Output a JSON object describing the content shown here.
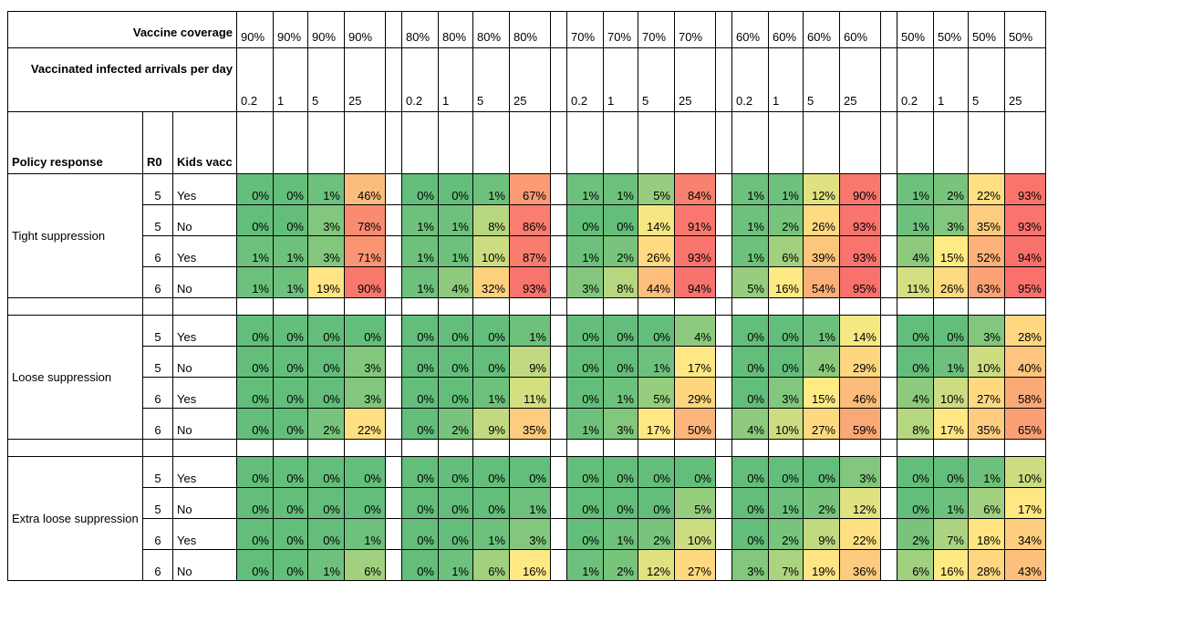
{
  "header": {
    "coverage_label": "Vaccine coverage",
    "arrivals_label": "Vaccinated infected arrivals per day",
    "coverage_values": [
      "90%",
      "80%",
      "70%",
      "60%",
      "50%"
    ],
    "arrival_values": [
      "0.2",
      "1",
      "5",
      "25"
    ]
  },
  "columns": {
    "policy": "Policy response",
    "r0": "R0",
    "kids": "Kids vacc"
  },
  "groups": [
    {
      "policy": "Tight suppression",
      "rows": [
        {
          "r0": "5",
          "kids": "Yes",
          "values": [
            "0%",
            "0%",
            "1%",
            "46%",
            "0%",
            "0%",
            "1%",
            "67%",
            "1%",
            "1%",
            "5%",
            "84%",
            "1%",
            "1%",
            "12%",
            "90%",
            "1%",
            "2%",
            "22%",
            "93%"
          ]
        },
        {
          "r0": "5",
          "kids": "No",
          "values": [
            "0%",
            "0%",
            "3%",
            "78%",
            "1%",
            "1%",
            "8%",
            "86%",
            "0%",
            "0%",
            "14%",
            "91%",
            "1%",
            "2%",
            "26%",
            "93%",
            "1%",
            "3%",
            "35%",
            "93%"
          ]
        },
        {
          "r0": "6",
          "kids": "Yes",
          "values": [
            "1%",
            "1%",
            "3%",
            "71%",
            "1%",
            "1%",
            "10%",
            "87%",
            "1%",
            "2%",
            "26%",
            "93%",
            "1%",
            "6%",
            "39%",
            "93%",
            "4%",
            "15%",
            "52%",
            "94%"
          ]
        },
        {
          "r0": "6",
          "kids": "No",
          "values": [
            "1%",
            "1%",
            "19%",
            "90%",
            "1%",
            "4%",
            "32%",
            "93%",
            "3%",
            "8%",
            "44%",
            "94%",
            "5%",
            "16%",
            "54%",
            "95%",
            "11%",
            "26%",
            "63%",
            "95%"
          ]
        }
      ]
    },
    {
      "policy": "Loose suppression",
      "rows": [
        {
          "r0": "5",
          "kids": "Yes",
          "values": [
            "0%",
            "0%",
            "0%",
            "0%",
            "0%",
            "0%",
            "0%",
            "1%",
            "0%",
            "0%",
            "0%",
            "4%",
            "0%",
            "0%",
            "1%",
            "14%",
            "0%",
            "0%",
            "3%",
            "28%"
          ]
        },
        {
          "r0": "5",
          "kids": "No",
          "values": [
            "0%",
            "0%",
            "0%",
            "3%",
            "0%",
            "0%",
            "0%",
            "9%",
            "0%",
            "0%",
            "1%",
            "17%",
            "0%",
            "0%",
            "4%",
            "29%",
            "0%",
            "1%",
            "10%",
            "40%"
          ]
        },
        {
          "r0": "6",
          "kids": "Yes",
          "values": [
            "0%",
            "0%",
            "0%",
            "3%",
            "0%",
            "0%",
            "1%",
            "11%",
            "0%",
            "1%",
            "5%",
            "29%",
            "0%",
            "3%",
            "15%",
            "46%",
            "4%",
            "10%",
            "27%",
            "58%"
          ]
        },
        {
          "r0": "6",
          "kids": "No",
          "values": [
            "0%",
            "0%",
            "2%",
            "22%",
            "0%",
            "2%",
            "9%",
            "35%",
            "1%",
            "3%",
            "17%",
            "50%",
            "4%",
            "10%",
            "27%",
            "59%",
            "8%",
            "17%",
            "35%",
            "65%"
          ]
        }
      ]
    },
    {
      "policy": "Extra loose suppression",
      "rows": [
        {
          "r0": "5",
          "kids": "Yes",
          "values": [
            "0%",
            "0%",
            "0%",
            "0%",
            "0%",
            "0%",
            "0%",
            "0%",
            "0%",
            "0%",
            "0%",
            "0%",
            "0%",
            "0%",
            "0%",
            "3%",
            "0%",
            "0%",
            "1%",
            "10%"
          ]
        },
        {
          "r0": "5",
          "kids": "No",
          "values": [
            "0%",
            "0%",
            "0%",
            "0%",
            "0%",
            "0%",
            "0%",
            "1%",
            "0%",
            "0%",
            "0%",
            "5%",
            "0%",
            "1%",
            "2%",
            "12%",
            "0%",
            "1%",
            "6%",
            "17%"
          ]
        },
        {
          "r0": "6",
          "kids": "Yes",
          "values": [
            "0%",
            "0%",
            "0%",
            "1%",
            "0%",
            "0%",
            "1%",
            "3%",
            "0%",
            "1%",
            "2%",
            "10%",
            "0%",
            "2%",
            "9%",
            "22%",
            "2%",
            "7%",
            "18%",
            "34%"
          ]
        },
        {
          "r0": "6",
          "kids": "No",
          "values": [
            "0%",
            "0%",
            "1%",
            "6%",
            "0%",
            "1%",
            "6%",
            "16%",
            "1%",
            "2%",
            "12%",
            "27%",
            "3%",
            "7%",
            "19%",
            "36%",
            "6%",
            "16%",
            "28%",
            "43%"
          ]
        }
      ]
    }
  ],
  "color_scale": [
    "#63be7b",
    "#ffeb84",
    "#f8696b"
  ]
}
